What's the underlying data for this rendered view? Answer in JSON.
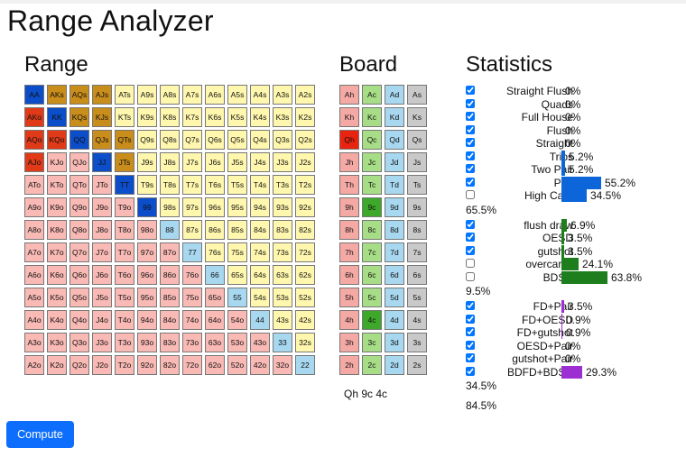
{
  "title": "Range Analyzer",
  "headings": {
    "range": "Range",
    "board": "Board",
    "statistics": "Statistics"
  },
  "colors": {
    "pair": "#a8d8f0",
    "suited": "#fff7ad",
    "offsuit": "#f9b9b4",
    "sel_pair": "#0c4ec9",
    "sel_suited": "#c98d1c",
    "sel_offsuit": "#e03a18",
    "hearts": "#f5a9a5",
    "clubs": "#a7dd86",
    "diamonds": "#a8d8f0",
    "spades": "#c9c9c9",
    "board_hearts": "#e8230f",
    "board_clubs": "#3da82a",
    "bar_blue": "#0c66d9",
    "bar_green": "#1e7e1e",
    "bar_purple": "#9b2fd1"
  },
  "range_grid": {
    "rows": [
      [
        "AA",
        "AKs",
        "AQs",
        "AJs",
        "ATs",
        "A9s",
        "A8s",
        "A7s",
        "A6s",
        "A5s",
        "A4s",
        "A3s",
        "A2s"
      ],
      [
        "AKo",
        "KK",
        "KQs",
        "KJs",
        "KTs",
        "K9s",
        "K8s",
        "K7s",
        "K6s",
        "K5s",
        "K4s",
        "K3s",
        "K2s"
      ],
      [
        "AQo",
        "KQo",
        "QQ",
        "QJs",
        "QTs",
        "Q9s",
        "Q8s",
        "Q7s",
        "Q6s",
        "Q5s",
        "Q4s",
        "Q3s",
        "Q2s"
      ],
      [
        "AJo",
        "KJo",
        "QJo",
        "JJ",
        "JTs",
        "J9s",
        "J8s",
        "J7s",
        "J6s",
        "J5s",
        "J4s",
        "J3s",
        "J2s"
      ],
      [
        "ATo",
        "KTo",
        "QTo",
        "JTo",
        "TT",
        "T9s",
        "T8s",
        "T7s",
        "T6s",
        "T5s",
        "T4s",
        "T3s",
        "T2s"
      ],
      [
        "A9o",
        "K9o",
        "Q9o",
        "J9o",
        "T9o",
        "99",
        "98s",
        "97s",
        "96s",
        "95s",
        "94s",
        "93s",
        "92s"
      ],
      [
        "A8o",
        "K8o",
        "Q8o",
        "J8o",
        "T8o",
        "98o",
        "88",
        "87s",
        "86s",
        "85s",
        "84s",
        "83s",
        "82s"
      ],
      [
        "A7o",
        "K7o",
        "Q7o",
        "J7o",
        "T7o",
        "97o",
        "87o",
        "77",
        "76s",
        "75s",
        "74s",
        "73s",
        "72s"
      ],
      [
        "A6o",
        "K6o",
        "Q6o",
        "J6o",
        "T6o",
        "96o",
        "86o",
        "76o",
        "66",
        "65s",
        "64s",
        "63s",
        "62s"
      ],
      [
        "A5o",
        "K5o",
        "Q5o",
        "J5o",
        "T5o",
        "95o",
        "85o",
        "75o",
        "65o",
        "55",
        "54s",
        "53s",
        "52s"
      ],
      [
        "A4o",
        "K4o",
        "Q4o",
        "J4o",
        "T4o",
        "94o",
        "84o",
        "74o",
        "64o",
        "54o",
        "44",
        "43s",
        "42s"
      ],
      [
        "A3o",
        "K3o",
        "Q3o",
        "J3o",
        "T3o",
        "93o",
        "83o",
        "73o",
        "63o",
        "53o",
        "43o",
        "33",
        "32s"
      ],
      [
        "A2o",
        "K2o",
        "Q2o",
        "J2o",
        "T2o",
        "92o",
        "82o",
        "72o",
        "62o",
        "52o",
        "42o",
        "32o",
        "22"
      ]
    ],
    "selected": [
      "AA",
      "AKs",
      "AQs",
      "AJs",
      "AKo",
      "KK",
      "KQs",
      "KJs",
      "AQo",
      "KQo",
      "QQ",
      "QJs",
      "QTs",
      "AJo",
      "JJ",
      "JTs",
      "TT",
      "99"
    ]
  },
  "board_grid": {
    "rows": [
      [
        "Ah",
        "Ac",
        "Ad",
        "As"
      ],
      [
        "Kh",
        "Kc",
        "Kd",
        "Ks"
      ],
      [
        "Qh",
        "Qc",
        "Qd",
        "Qs"
      ],
      [
        "Jh",
        "Jc",
        "Jd",
        "Js"
      ],
      [
        "Th",
        "Tc",
        "Td",
        "Ts"
      ],
      [
        "9h",
        "9c",
        "9d",
        "9s"
      ],
      [
        "8h",
        "8c",
        "8d",
        "8s"
      ],
      [
        "7h",
        "7c",
        "7d",
        "7s"
      ],
      [
        "6h",
        "6c",
        "6d",
        "6s"
      ],
      [
        "5h",
        "5c",
        "5d",
        "5s"
      ],
      [
        "4h",
        "4c",
        "4d",
        "4s"
      ],
      [
        "3h",
        "3c",
        "3d",
        "3s"
      ],
      [
        "2h",
        "2c",
        "2d",
        "2s"
      ]
    ],
    "selected": [
      "Qh",
      "9c",
      "4c"
    ],
    "text": "Qh 9c 4c"
  },
  "statistics": {
    "groups": [
      {
        "color": "#0c66d9",
        "rows": [
          {
            "label": "Straight Flush",
            "value": "0%",
            "pct": 0,
            "checked": true
          },
          {
            "label": "Quads",
            "value": "0%",
            "pct": 0,
            "checked": true
          },
          {
            "label": "Full House",
            "value": "0%",
            "pct": 0,
            "checked": true
          },
          {
            "label": "Flush",
            "value": "0%",
            "pct": 0,
            "checked": true
          },
          {
            "label": "Straight",
            "value": "0%",
            "pct": 0,
            "checked": true
          },
          {
            "label": "Trips",
            "value": "5.2%",
            "pct": 5.2,
            "checked": true
          },
          {
            "label": "Two Pair",
            "value": "5.2%",
            "pct": 5.2,
            "checked": true
          },
          {
            "label": "Pair",
            "value": "55.2%",
            "pct": 55.2,
            "checked": true
          },
          {
            "label": "High Card",
            "value": "34.5%",
            "pct": 34.5,
            "checked": false
          }
        ],
        "total": "65.5%"
      },
      {
        "color": "#1e7e1e",
        "rows": [
          {
            "label": "flush draw",
            "value": "6.9%",
            "pct": 6.9,
            "checked": true
          },
          {
            "label": "OESD",
            "value": "3.5%",
            "pct": 3.5,
            "checked": true
          },
          {
            "label": "gutshot",
            "value": "3.5%",
            "pct": 3.5,
            "checked": true
          },
          {
            "label": "overcards",
            "value": "24.1%",
            "pct": 24.1,
            "checked": false
          },
          {
            "label": "BDSD",
            "value": "63.8%",
            "pct": 63.8,
            "checked": false
          }
        ],
        "total": "9.5%"
      },
      {
        "color": "#9b2fd1",
        "rows": [
          {
            "label": "FD+Pair",
            "value": "3.5%",
            "pct": 3.5,
            "checked": true
          },
          {
            "label": "FD+OESD",
            "value": "0.9%",
            "pct": 0.9,
            "checked": true
          },
          {
            "label": "FD+gutshot",
            "value": "0.9%",
            "pct": 0.9,
            "checked": true
          },
          {
            "label": "OESD+Pair",
            "value": "0%",
            "pct": 0,
            "checked": true
          },
          {
            "label": "gutshot+Pair",
            "value": "0%",
            "pct": 0,
            "checked": true
          },
          {
            "label": "BDFD+BDSD",
            "value": "29.3%",
            "pct": 29.3,
            "checked": true
          }
        ],
        "total": "34.5%"
      }
    ],
    "overall": "84.5%"
  },
  "compute_label": "Compute"
}
